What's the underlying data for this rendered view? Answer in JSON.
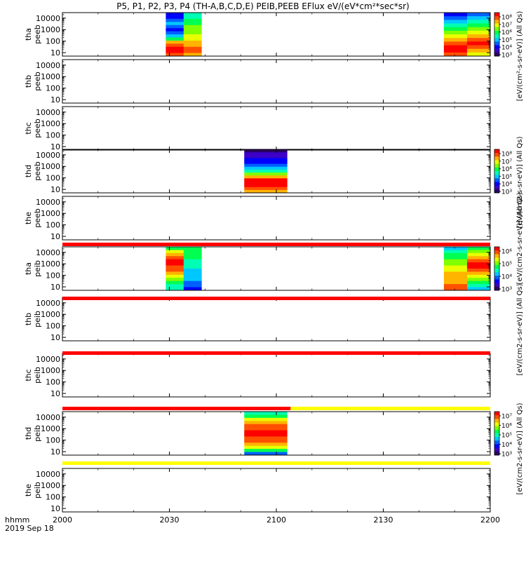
{
  "title": "P5, P1, P2, P3, P4 (TH-A,B,C,D,E) PEIB,PEEB EFlux eV/(eV*cm²*sec*sr)",
  "footer": {
    "time_label": "hhmm",
    "date_label": "2019 Sep 18"
  },
  "colorbar_labels": {
    "eflux_top": "[eV/(cm²-s-sr-eV)] (All Qs)",
    "eflux_mid": "[eV/(cm2-s-sr-eV)] (All Qs)",
    "eflux_small": "[eV/(cm2-s-sr-eV)] (All Qs)",
    "peib_mid": "[eV/(cm2-s-sr-eV)] (All Qs)"
  },
  "colors": {
    "red": "#ff0000",
    "yellow": "#ffff00",
    "black": "#000000",
    "spectrum": [
      "#2a0060",
      "#3c00c8",
      "#0000ff",
      "#0060ff",
      "#00c8ff",
      "#00ffb4",
      "#00ff50",
      "#80ff00",
      "#e8ff00",
      "#ffb400",
      "#ff5000",
      "#ff0000"
    ]
  },
  "chart_data": {
    "type": "heatmap",
    "x_axis": {
      "ticks": [
        "2000",
        "2030",
        "2100",
        "2130",
        "2200"
      ],
      "range": [
        "2000",
        "2200"
      ],
      "units": "hhmm"
    },
    "y_axis": {
      "ticks": [
        "10",
        "100",
        "1000",
        "10000"
      ],
      "scale": "log",
      "range": [
        5,
        30000
      ],
      "units": "eV"
    },
    "panels": [
      {
        "name": "tha peeb",
        "line1": "tha",
        "line2": "peeb",
        "has_data": true,
        "blocks": [
          {
            "start": "2029",
            "end": "2039",
            "profile": "a_peeb_block1"
          },
          {
            "start": "2147",
            "end": "2200",
            "profile": "a_peeb_block2"
          }
        ],
        "colorbar": {
          "ticks": [
            "10⁸",
            "10⁷",
            "10⁶",
            "10⁵",
            "10⁴",
            "10³"
          ]
        }
      },
      {
        "name": "thb peeb",
        "line1": "thb",
        "line2": "peeb",
        "has_data": false,
        "blocks": []
      },
      {
        "name": "thc peeb",
        "line1": "thc",
        "line2": "peeb",
        "has_data": false,
        "blocks": []
      },
      {
        "name": "thd peeb",
        "line1": "thd",
        "line2": "peeb",
        "has_data": true,
        "blocks": [
          {
            "start": "2051",
            "end": "2103",
            "profile": "d_peeb"
          }
        ],
        "colorbar": {
          "ticks": [
            "10⁸",
            "10⁷",
            "10⁶",
            "10⁵",
            "10⁴",
            "10³"
          ]
        }
      },
      {
        "name": "the peeb",
        "line1": "the",
        "line2": "peeb",
        "has_data": false,
        "blocks": []
      },
      {
        "name": "tha peib",
        "line1": "tha",
        "line2": "peib",
        "has_data": true,
        "blocks": [
          {
            "start": "2029",
            "end": "2039",
            "profile": "a_peib_block1"
          },
          {
            "start": "2147",
            "end": "2200",
            "profile": "a_peib_block2"
          }
        ],
        "colorbar": {
          "ticks": [
            "10⁶",
            "10⁵",
            "10⁴",
            "10³"
          ]
        }
      },
      {
        "name": "thb peib",
        "line1": "thb",
        "line2": "peib",
        "has_data": false,
        "blocks": []
      },
      {
        "name": "thc peib",
        "line1": "thc",
        "line2": "peib",
        "has_data": false,
        "blocks": []
      },
      {
        "name": "thd peib",
        "line1": "thd",
        "line2": "peib",
        "has_data": true,
        "blocks": [
          {
            "start": "2051",
            "end": "2103",
            "profile": "d_peib"
          }
        ],
        "colorbar": {
          "ticks": [
            "10⁷",
            "10⁶",
            "10⁵",
            "10⁴",
            "10³"
          ]
        }
      },
      {
        "name": "the peib",
        "line1": "the",
        "line2": "peib",
        "has_data": false,
        "blocks": []
      }
    ],
    "status_bars": [
      {
        "after_panel": 5,
        "segments": [
          {
            "start": "2000",
            "end": "2200",
            "color": "red"
          }
        ]
      },
      {
        "after_panel": 6,
        "segments": [
          {
            "start": "2000",
            "end": "2200",
            "color": "red"
          }
        ]
      },
      {
        "after_panel": 7,
        "segments": [
          {
            "start": "2000",
            "end": "2200",
            "color": "red"
          }
        ]
      },
      {
        "after_panel": 8,
        "segments": [
          {
            "start": "2000",
            "end": "2104",
            "color": "red"
          },
          {
            "start": "2104",
            "end": "2200",
            "color": "yellow"
          }
        ]
      },
      {
        "after_panel": 9,
        "segments": [
          {
            "start": "2000",
            "end": "2200",
            "color": "yellow"
          }
        ]
      }
    ]
  }
}
